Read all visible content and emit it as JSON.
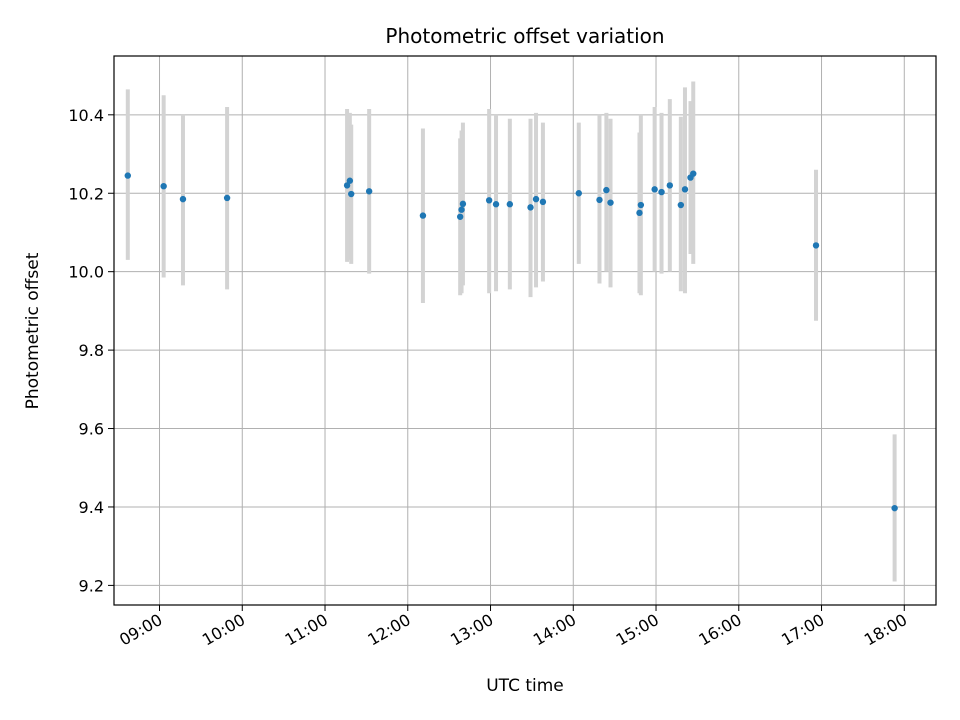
{
  "chart_data": {
    "type": "scatter",
    "title": "Photometric offset variation",
    "xlabel": "UTC time",
    "ylabel": "Photometric offset",
    "xlim": [
      "08:27",
      "18:23"
    ],
    "ylim": [
      9.15,
      10.55
    ],
    "x_ticks": [
      "09:00",
      "10:00",
      "11:00",
      "12:00",
      "13:00",
      "14:00",
      "15:00",
      "16:00",
      "17:00",
      "18:00"
    ],
    "y_ticks": [
      "9.2",
      "9.4",
      "9.6",
      "9.8",
      "10.0",
      "10.2",
      "10.4"
    ],
    "grid": true,
    "colors": {
      "point": "#1f77b4",
      "errorbar": "#d3d3d3",
      "grid": "#b0b0b0"
    },
    "points": [
      {
        "x": "08:37",
        "y": 10.245,
        "ylow": 10.03,
        "yhigh": 10.465
      },
      {
        "x": "09:03",
        "y": 10.218,
        "ylow": 9.985,
        "yhigh": 10.45
      },
      {
        "x": "09:17",
        "y": 10.185,
        "ylow": 9.965,
        "yhigh": 10.4
      },
      {
        "x": "09:49",
        "y": 10.188,
        "ylow": 9.955,
        "yhigh": 10.42
      },
      {
        "x": "11:16",
        "y": 10.22,
        "ylow": 10.025,
        "yhigh": 10.415
      },
      {
        "x": "11:18",
        "y": 10.232,
        "ylow": 10.03,
        "yhigh": 10.405
      },
      {
        "x": "11:19",
        "y": 10.198,
        "ylow": 10.02,
        "yhigh": 10.375
      },
      {
        "x": "11:32",
        "y": 10.205,
        "ylow": 9.995,
        "yhigh": 10.415
      },
      {
        "x": "12:11",
        "y": 10.143,
        "ylow": 9.92,
        "yhigh": 10.365
      },
      {
        "x": "12:38",
        "y": 10.14,
        "ylow": 9.94,
        "yhigh": 10.34
      },
      {
        "x": "12:39",
        "y": 10.158,
        "ylow": 9.945,
        "yhigh": 10.36
      },
      {
        "x": "12:40",
        "y": 10.173,
        "ylow": 9.965,
        "yhigh": 10.38
      },
      {
        "x": "12:59",
        "y": 10.182,
        "ylow": 9.945,
        "yhigh": 10.415
      },
      {
        "x": "13:04",
        "y": 10.172,
        "ylow": 9.95,
        "yhigh": 10.4
      },
      {
        "x": "13:14",
        "y": 10.172,
        "ylow": 9.955,
        "yhigh": 10.39
      },
      {
        "x": "13:29",
        "y": 10.164,
        "ylow": 9.935,
        "yhigh": 10.39
      },
      {
        "x": "13:33",
        "y": 10.185,
        "ylow": 9.96,
        "yhigh": 10.405
      },
      {
        "x": "13:38",
        "y": 10.178,
        "ylow": 9.975,
        "yhigh": 10.38
      },
      {
        "x": "14:04",
        "y": 10.2,
        "ylow": 10.02,
        "yhigh": 10.38
      },
      {
        "x": "14:19",
        "y": 10.183,
        "ylow": 9.97,
        "yhigh": 10.4
      },
      {
        "x": "14:24",
        "y": 10.208,
        "ylow": 10.0,
        "yhigh": 10.405
      },
      {
        "x": "14:27",
        "y": 10.176,
        "ylow": 9.96,
        "yhigh": 10.39
      },
      {
        "x": "14:48",
        "y": 10.15,
        "ylow": 9.945,
        "yhigh": 10.355
      },
      {
        "x": "14:49",
        "y": 10.17,
        "ylow": 9.94,
        "yhigh": 10.4
      },
      {
        "x": "14:59",
        "y": 10.21,
        "ylow": 10.0,
        "yhigh": 10.42
      },
      {
        "x": "15:04",
        "y": 10.203,
        "ylow": 9.995,
        "yhigh": 10.405
      },
      {
        "x": "15:10",
        "y": 10.22,
        "ylow": 10.0,
        "yhigh": 10.44
      },
      {
        "x": "15:18",
        "y": 10.17,
        "ylow": 9.95,
        "yhigh": 10.395
      },
      {
        "x": "15:21",
        "y": 10.21,
        "ylow": 9.945,
        "yhigh": 10.47
      },
      {
        "x": "15:25",
        "y": 10.24,
        "ylow": 10.045,
        "yhigh": 10.435
      },
      {
        "x": "15:27",
        "y": 10.25,
        "ylow": 10.02,
        "yhigh": 10.485
      },
      {
        "x": "16:56",
        "y": 10.067,
        "ylow": 9.875,
        "yhigh": 10.26
      },
      {
        "x": "17:53",
        "y": 9.397,
        "ylow": 9.21,
        "yhigh": 9.585
      }
    ]
  }
}
